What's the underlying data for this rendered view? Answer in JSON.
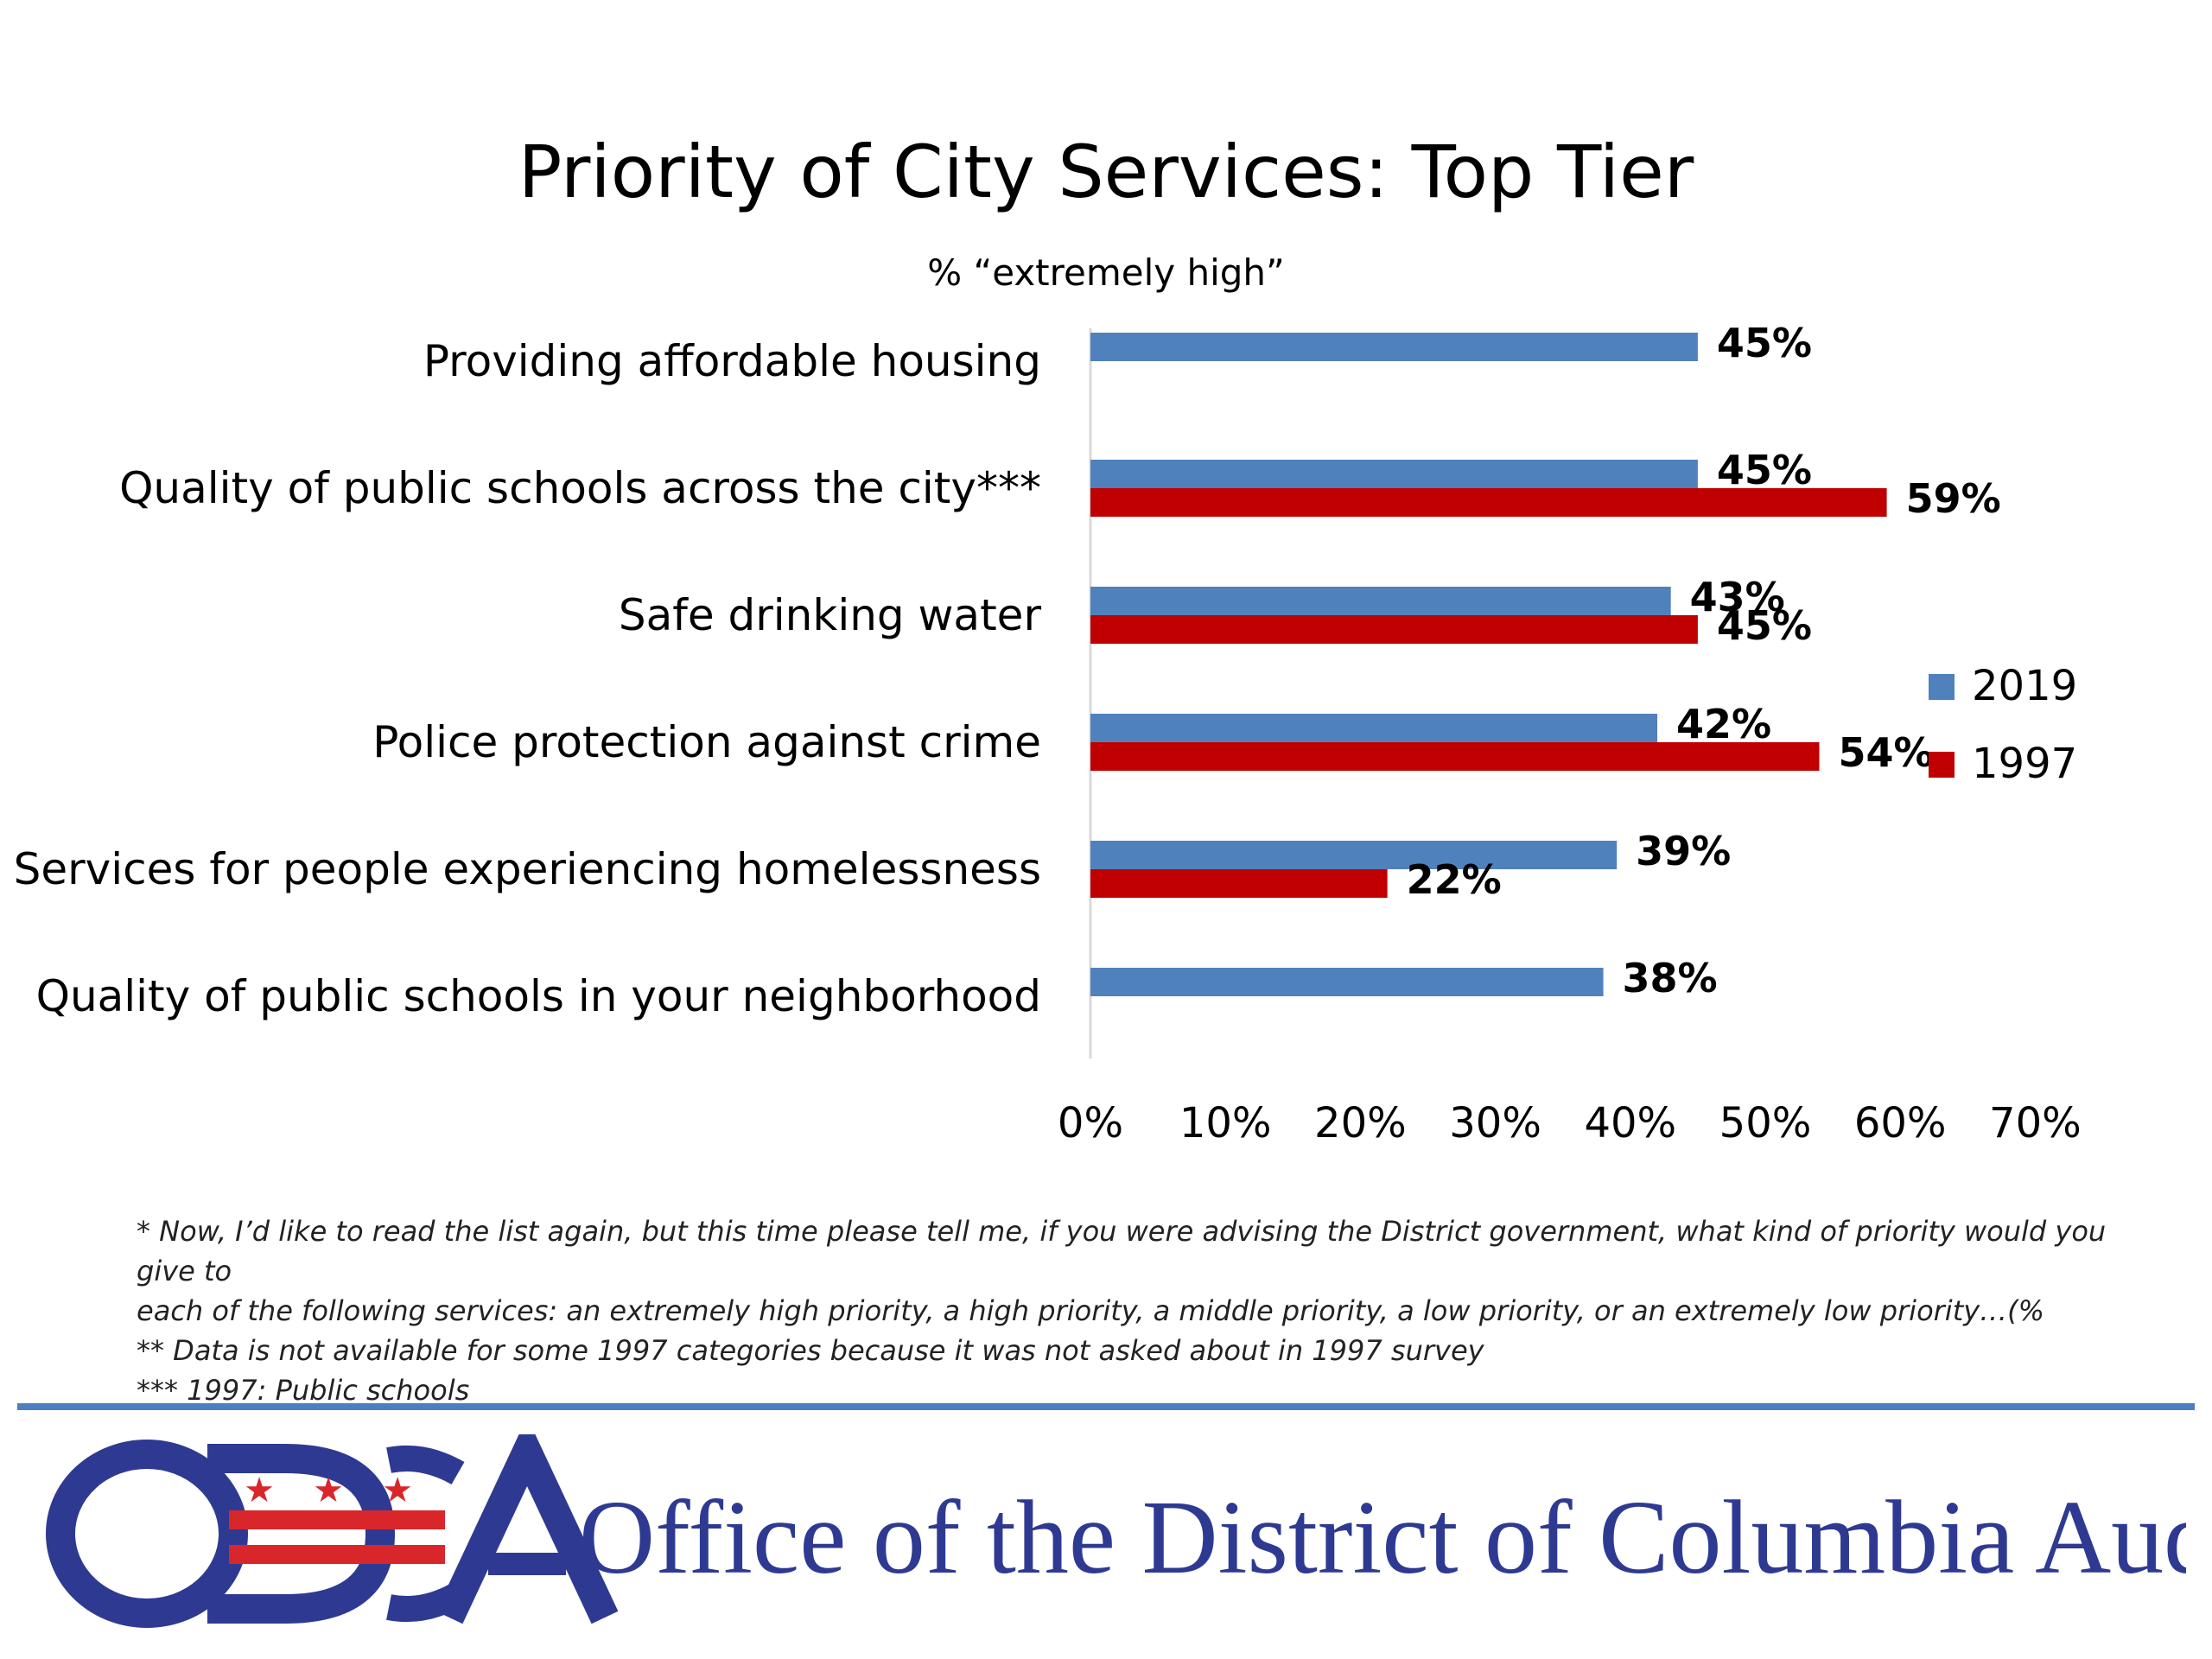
{
  "chart_data": {
    "type": "bar",
    "orientation": "horizontal",
    "title": "Priority of City Services: Top Tier",
    "subtitle": "% “extremely high”",
    "categories": [
      "Providing affordable housing",
      "Quality of public schools across the city***",
      "Safe drinking water",
      "Police protection against crime",
      "Services for people experiencing homelessness",
      "Quality of public schools in your neighborhood"
    ],
    "series": [
      {
        "name": "2019",
        "color": "#4f81bd",
        "values": [
          45,
          45,
          43,
          42,
          39,
          38
        ],
        "labels": [
          "45%",
          "45%",
          "43%",
          "42%",
          "39%",
          "38%"
        ]
      },
      {
        "name": "1997",
        "color": "#c00000",
        "values": [
          null,
          59,
          45,
          54,
          22,
          null
        ],
        "labels": [
          null,
          "59%",
          "45%",
          "54%",
          "22%",
          null
        ]
      }
    ],
    "xlim": [
      0,
      70
    ],
    "xticks": [
      "0%",
      "10%",
      "20%",
      "30%",
      "40%",
      "50%",
      "60%",
      "70%"
    ],
    "grid": false,
    "legend": "right"
  },
  "footnotes": [
    "* Now, I’d like to read the list again, but this time please tell me, if you were advising the District government, what kind of priority would you give to",
    "each of the following services: an extremely high priority, a high priority, a middle priority, a low priority, or an extremely low priority…(%",
    "** Data is not available for some 1997 categories because it was not asked about in 1997 survey",
    "*** 1997: Public schools"
  ],
  "logo": {
    "mark": "ODCA",
    "name": "Office of the District of Columbia Auditor",
    "colors": {
      "blue": "#2e3a92",
      "red": "#d9262b"
    }
  }
}
